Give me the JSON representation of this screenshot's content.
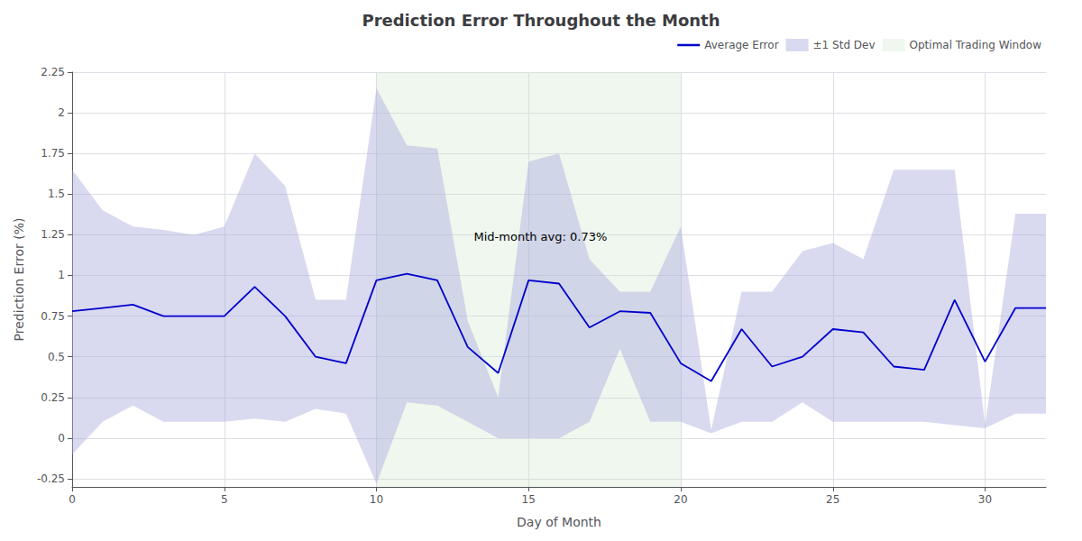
{
  "chart_data": {
    "type": "line",
    "title": "Prediction Error Throughout the Month",
    "xlabel": "Day of Month",
    "ylabel": "Prediction Error (%)",
    "x": [
      0,
      1,
      2,
      3,
      4,
      5,
      6,
      7,
      8,
      9,
      10,
      11,
      12,
      13,
      14,
      15,
      16,
      17,
      18,
      19,
      20,
      21,
      22,
      23,
      24,
      25,
      26,
      27,
      28,
      29,
      30,
      31,
      32
    ],
    "series": [
      {
        "name": "Average Error",
        "type": "line",
        "color": "#0000cc",
        "values": [
          0.78,
          0.8,
          0.82,
          0.75,
          0.75,
          0.75,
          0.93,
          0.75,
          0.5,
          0.46,
          0.97,
          1.01,
          0.97,
          0.56,
          0.4,
          0.97,
          0.95,
          0.68,
          0.78,
          0.77,
          0.46,
          0.35,
          0.67,
          0.44,
          0.5,
          0.67,
          0.65,
          0.44,
          0.42,
          0.85,
          0.47,
          0.8,
          0.8
        ]
      },
      {
        "name": "±1 Std Dev",
        "type": "band",
        "color": "#aaaadd",
        "upper": [
          1.65,
          1.4,
          1.3,
          1.28,
          1.25,
          1.3,
          1.75,
          1.55,
          0.85,
          0.85,
          2.15,
          1.8,
          1.78,
          0.72,
          0.25,
          1.7,
          1.75,
          1.1,
          0.9,
          0.9,
          1.3,
          0.05,
          0.9,
          0.9,
          1.15,
          1.2,
          1.1,
          1.65,
          1.65,
          1.65,
          0.08,
          1.38,
          1.38
        ],
        "lower": [
          -0.1,
          0.1,
          0.2,
          0.1,
          0.1,
          0.1,
          0.12,
          0.1,
          0.18,
          0.15,
          -0.28,
          0.22,
          0.2,
          0.1,
          0.0,
          0.0,
          0.0,
          0.1,
          0.55,
          0.1,
          0.1,
          0.03,
          0.1,
          0.1,
          0.22,
          0.1,
          0.1,
          0.1,
          0.1,
          0.08,
          0.06,
          0.15,
          0.15
        ]
      },
      {
        "name": "Optimal Trading Window",
        "type": "span",
        "color": "#d0e8d0",
        "start": 10,
        "end": 20
      }
    ],
    "annotations": [
      {
        "text": "Mid-month avg: 0.73%",
        "x": 13.2,
        "y": 1.2
      }
    ],
    "xlim": [
      0,
      32
    ],
    "ylim": [
      -0.3,
      2.25
    ],
    "xticks": [
      0,
      5,
      10,
      15,
      20,
      25,
      30
    ],
    "yticks": [
      -0.25,
      0,
      0.25,
      0.5,
      0.75,
      1,
      1.25,
      1.5,
      1.75,
      2,
      2.25
    ],
    "grid": true,
    "legend": "upper right"
  }
}
